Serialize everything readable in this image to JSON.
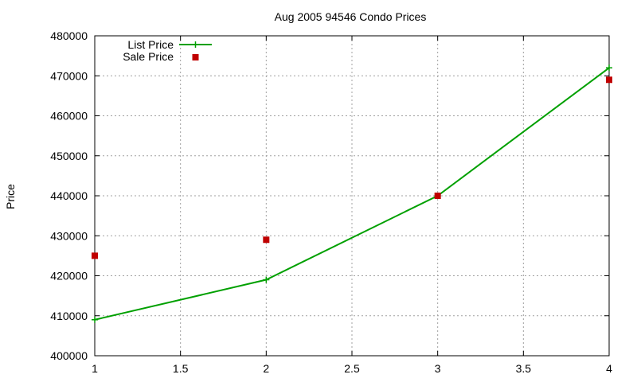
{
  "chart_data": {
    "type": "line",
    "title": "Aug 2005 94546 Condo Prices",
    "xlabel": "",
    "ylabel": "Price",
    "xlim": [
      1,
      4
    ],
    "ylim": [
      400000,
      480000
    ],
    "xticks": [
      1,
      1.5,
      2,
      2.5,
      3,
      3.5,
      4
    ],
    "xtick_labels": [
      "1",
      "1.5",
      "2",
      "2.5",
      "3",
      "3.5",
      "4"
    ],
    "yticks": [
      400000,
      410000,
      420000,
      430000,
      440000,
      450000,
      460000,
      470000,
      480000
    ],
    "ytick_labels": [
      "400000",
      "410000",
      "420000",
      "430000",
      "440000",
      "450000",
      "460000",
      "470000",
      "480000"
    ],
    "grid": true,
    "legend_position": "top-left",
    "series": [
      {
        "name": "List Price",
        "style": "linespoints",
        "marker": "plus",
        "color": "#00a000",
        "x": [
          1,
          2,
          3,
          4
        ],
        "y": [
          409000,
          419000,
          440000,
          472000
        ]
      },
      {
        "name": "Sale Price",
        "style": "points",
        "marker": "square",
        "color": "#c00000",
        "x": [
          1,
          2,
          3,
          4
        ],
        "y": [
          425000,
          429000,
          440000,
          469000
        ]
      }
    ]
  }
}
